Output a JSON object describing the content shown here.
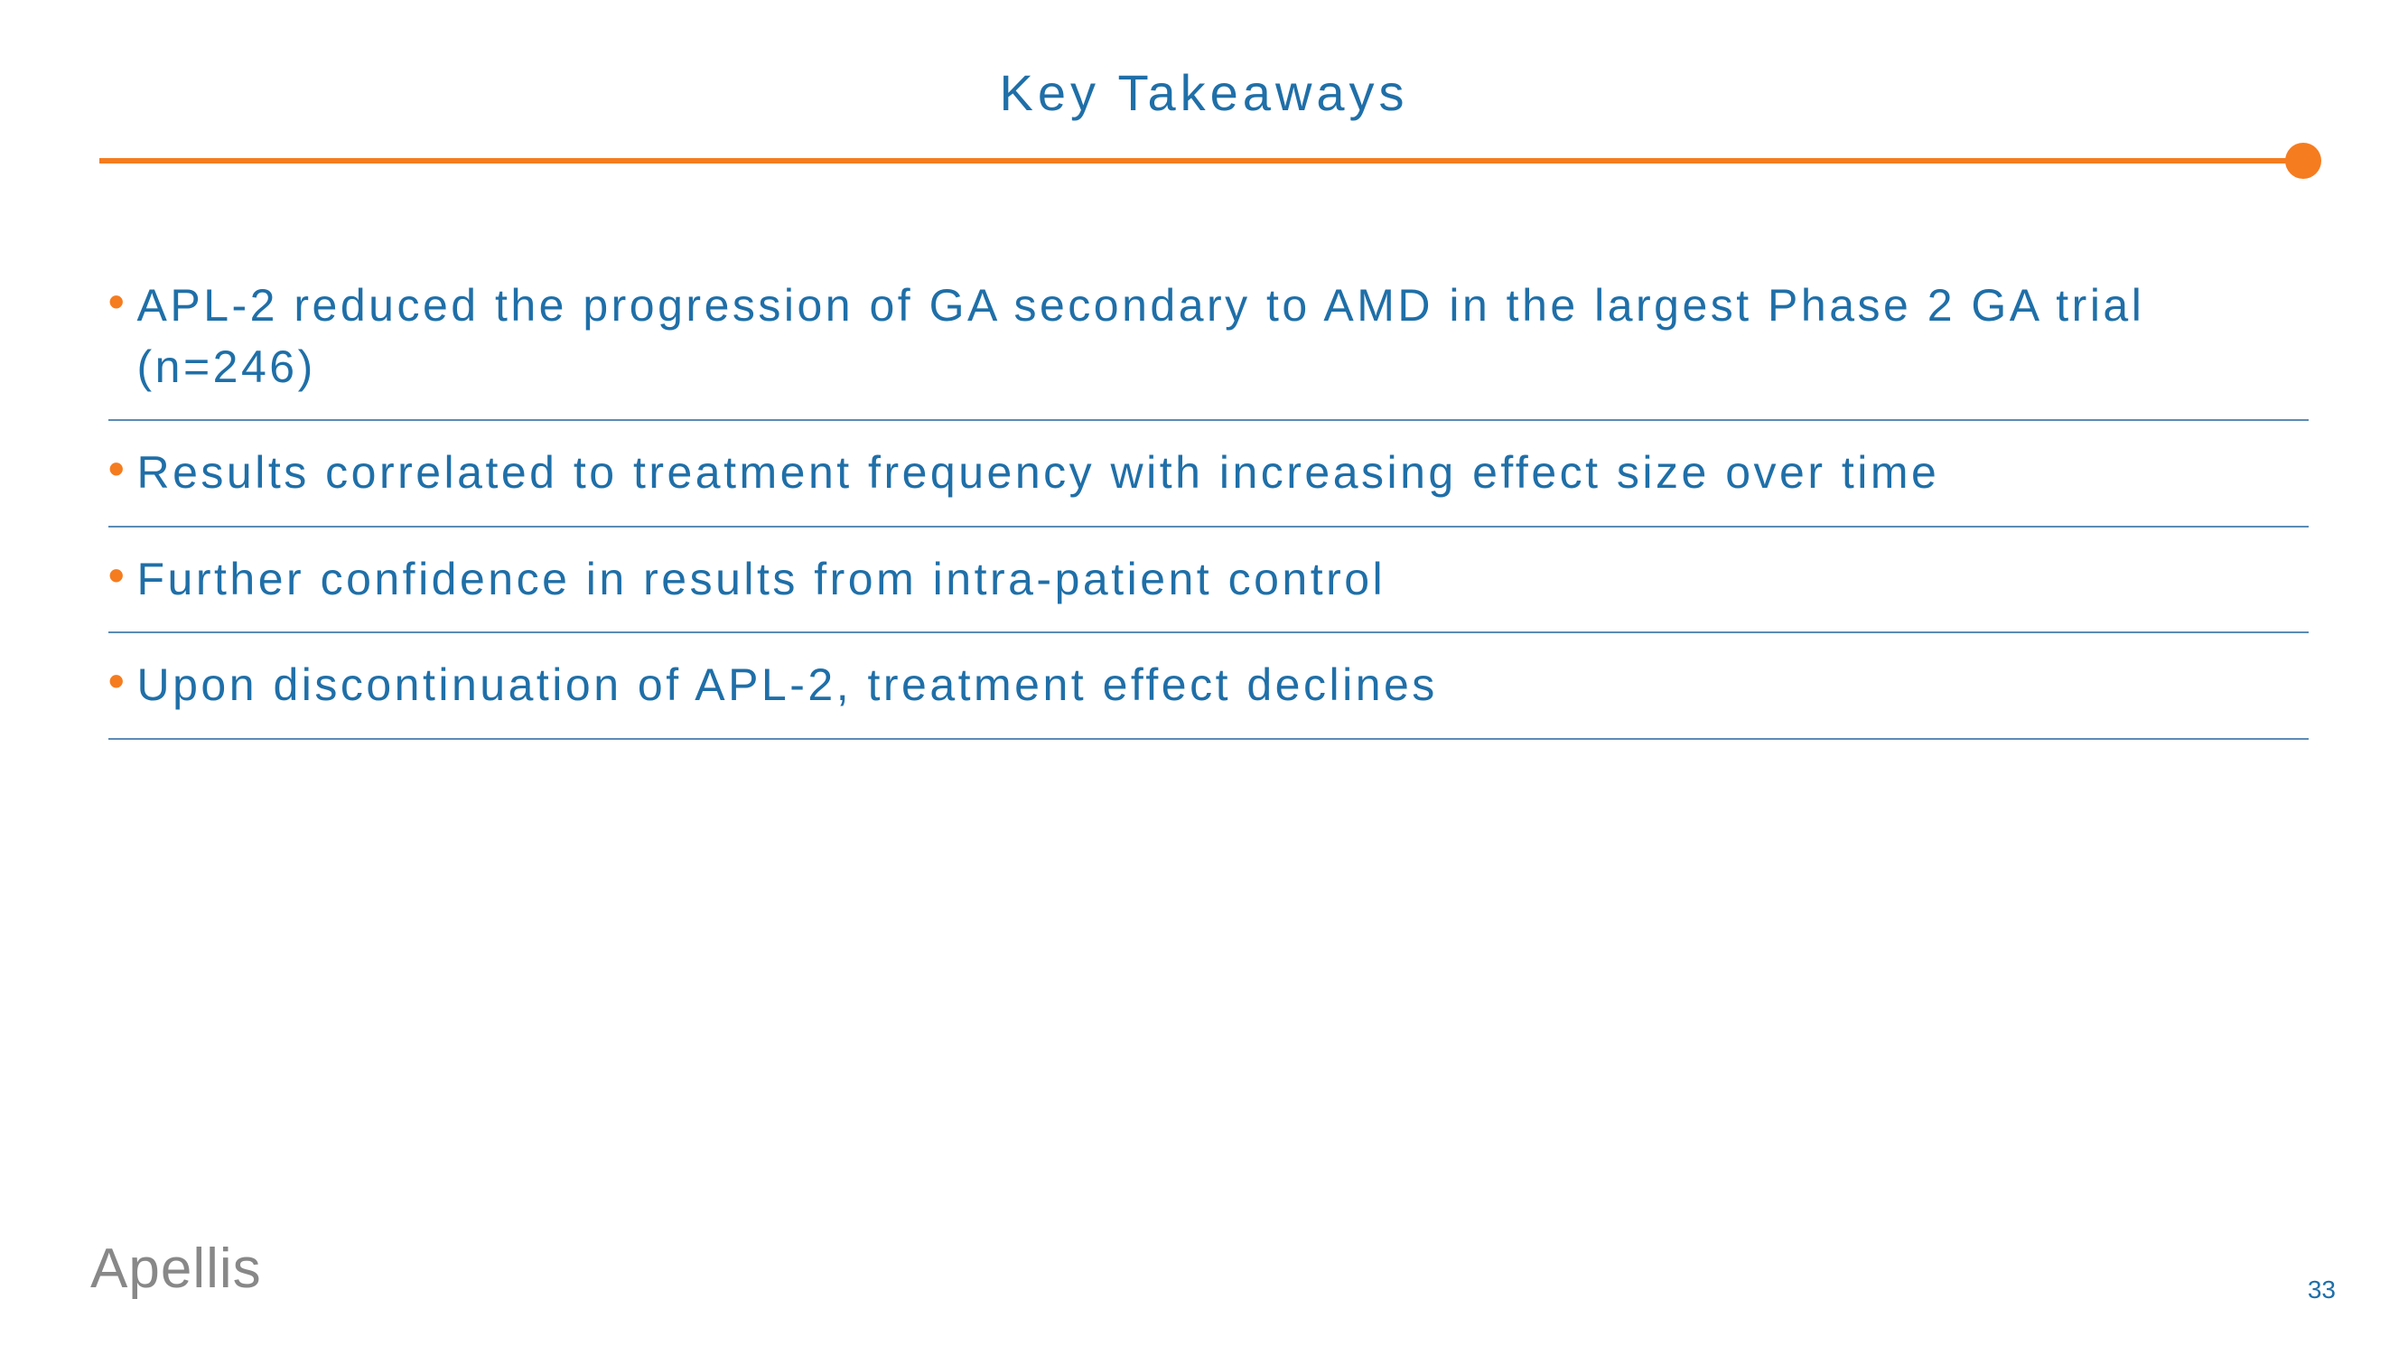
{
  "slide": {
    "title": "Key Takeaways",
    "title_color": "#1F6FA8",
    "title_fontsize": 56,
    "divider": {
      "color": "#F57C1F",
      "thickness": 6,
      "dot_diameter": 40
    },
    "bullets": [
      "APL-2 reduced the progression of GA secondary to AMD in the largest Phase 2 GA trial (n=246)",
      "Results correlated to treatment frequency with increasing effect size over time",
      "Further confidence in results from intra-patient control",
      "Upon discontinuation of APL-2, treatment effect declines"
    ],
    "bullet_color": "#1F6FA8",
    "bullet_marker_color": "#F57C1F",
    "bullet_fontsize": 50,
    "bullet_underline_color": "#5B8BB5",
    "logo_text": "Apellis",
    "logo_color": "#888888",
    "page_number": "33",
    "background_color": "#ffffff"
  }
}
